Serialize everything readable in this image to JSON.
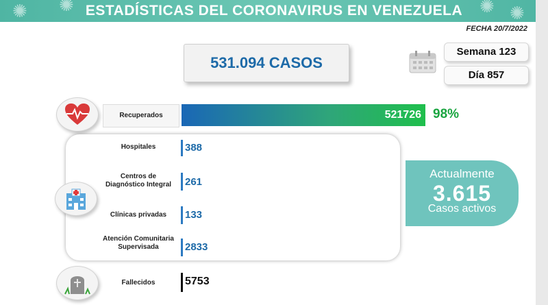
{
  "header": {
    "title": "ESTADÍSTICAS DEL CORONAVIRUS EN VENEZUELA",
    "banner_color": "#4fb5a3"
  },
  "date": "FECHA 20/7/2022",
  "total_cases": "531.094 CASOS",
  "week": "Semana 123",
  "day": "Día 857",
  "recovered": {
    "label": "Recuperados",
    "value": "521726",
    "percent": "98%"
  },
  "care": [
    {
      "label": "Hospitales",
      "value": "388"
    },
    {
      "label": "Centros de Diagnóstico Integral",
      "value": "261"
    },
    {
      "label": "Clínicas privadas",
      "value": "133"
    },
    {
      "label": "Atención Comunitaria Supervisada",
      "value": "2833"
    }
  ],
  "active": {
    "top": "Actualmente",
    "number": "3.615",
    "bottom": "Casos activos"
  },
  "deaths": {
    "label": "Fallecidos",
    "value": "5753"
  },
  "icons": [
    "virus-icon",
    "calendar-icon",
    "heart-icon",
    "hospital-icon",
    "tombstone-icon"
  ]
}
